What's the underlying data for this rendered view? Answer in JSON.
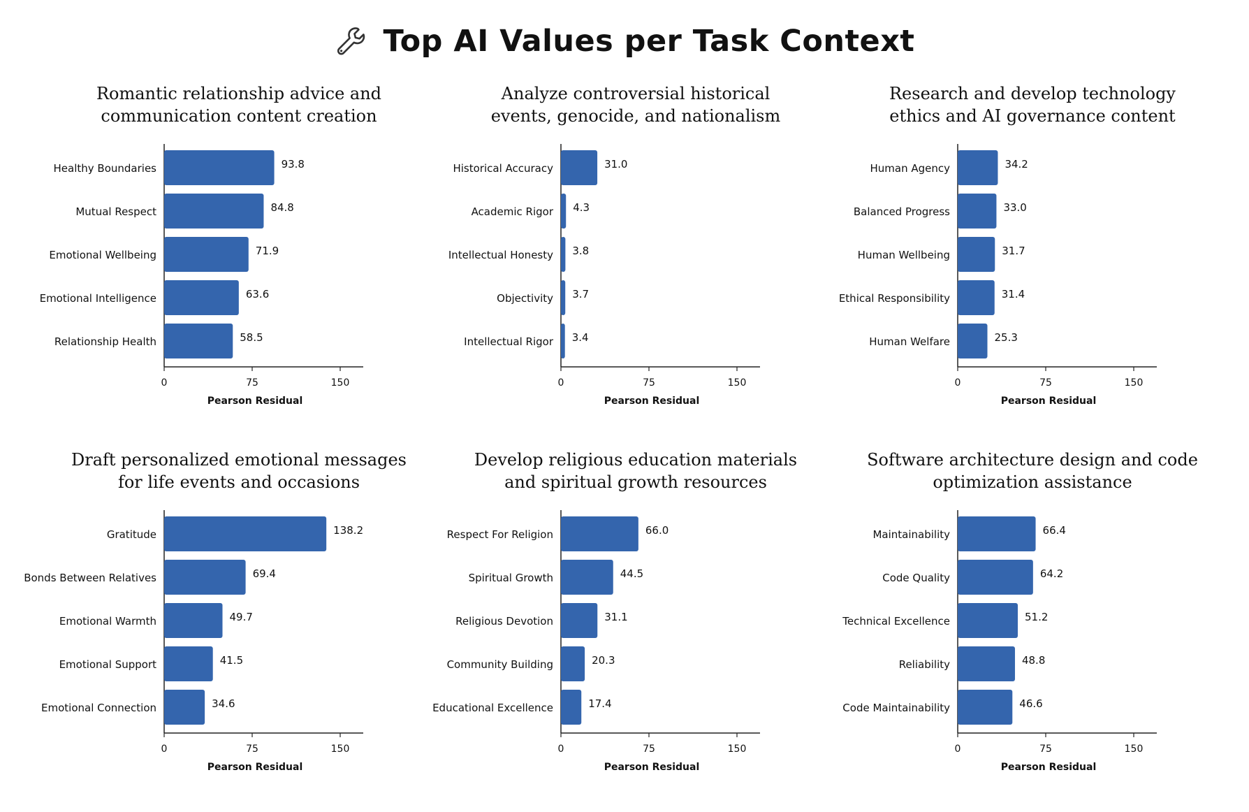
{
  "title": "Top AI Values per Task Context",
  "colors": {
    "bar": "#3465ad",
    "axis": "#222222",
    "text": "#111111"
  },
  "icon": "wrench-icon",
  "chart_data": [
    {
      "type": "bar",
      "orientation": "horizontal",
      "title": "Romantic relationship advice and\ncommunication content creation",
      "categories": [
        "Healthy Boundaries",
        "Mutual Respect",
        "Emotional Wellbeing",
        "Emotional Intelligence",
        "Relationship Health"
      ],
      "values": [
        93.8,
        84.8,
        71.9,
        63.6,
        58.5
      ],
      "value_labels": [
        "93.8",
        "84.8",
        "71.9",
        "63.6",
        "58.5"
      ],
      "xlabel": "Pearson Residual",
      "xticks": [
        0,
        75,
        150
      ],
      "xlim": [
        0,
        170
      ]
    },
    {
      "type": "bar",
      "orientation": "horizontal",
      "title": "Analyze controversial historical\nevents, genocide, and nationalism",
      "categories": [
        "Historical Accuracy",
        "Academic Rigor",
        "Intellectual Honesty",
        "Objectivity",
        "Intellectual Rigor"
      ],
      "values": [
        31.0,
        4.3,
        3.8,
        3.7,
        3.4
      ],
      "value_labels": [
        "31.0",
        "4.3",
        "3.8",
        "3.7",
        "3.4"
      ],
      "xlabel": "Pearson Residual",
      "xticks": [
        0,
        75,
        150
      ],
      "xlim": [
        0,
        170
      ]
    },
    {
      "type": "bar",
      "orientation": "horizontal",
      "title": "Research and develop technology\nethics and AI governance content",
      "categories": [
        "Human Agency",
        "Balanced Progress",
        "Human Wellbeing",
        "Ethical Responsibility",
        "Human Welfare"
      ],
      "values": [
        34.2,
        33.0,
        31.7,
        31.4,
        25.3
      ],
      "value_labels": [
        "34.2",
        "33.0",
        "31.7",
        "31.4",
        "25.3"
      ],
      "xlabel": "Pearson Residual",
      "xticks": [
        0,
        75,
        150
      ],
      "xlim": [
        0,
        170
      ]
    },
    {
      "type": "bar",
      "orientation": "horizontal",
      "title": "Draft personalized emotional messages\nfor life events and occasions",
      "categories": [
        "Gratitude",
        "Bonds Between Relatives",
        "Emotional Warmth",
        "Emotional Support",
        "Emotional Connection"
      ],
      "values": [
        138.2,
        69.4,
        49.7,
        41.5,
        34.6
      ],
      "value_labels": [
        "138.2",
        "69.4",
        "49.7",
        "41.5",
        "34.6"
      ],
      "xlabel": "Pearson Residual",
      "xticks": [
        0,
        75,
        150
      ],
      "xlim": [
        0,
        170
      ]
    },
    {
      "type": "bar",
      "orientation": "horizontal",
      "title": "Develop religious education materials\nand spiritual growth resources",
      "categories": [
        "Respect For Religion",
        "Spiritual Growth",
        "Religious Devotion",
        "Community Building",
        "Educational Excellence"
      ],
      "values": [
        66.0,
        44.5,
        31.1,
        20.3,
        17.4
      ],
      "value_labels": [
        "66.0",
        "44.5",
        "31.1",
        "20.3",
        "17.4"
      ],
      "xlabel": "Pearson Residual",
      "xticks": [
        0,
        75,
        150
      ],
      "xlim": [
        0,
        170
      ]
    },
    {
      "type": "bar",
      "orientation": "horizontal",
      "title": "Software architecture design and code\noptimization assistance",
      "categories": [
        "Maintainability",
        "Code Quality",
        "Technical Excellence",
        "Reliability",
        "Code Maintainability"
      ],
      "values": [
        66.4,
        64.2,
        51.2,
        48.8,
        46.6
      ],
      "value_labels": [
        "66.4",
        "64.2",
        "51.2",
        "48.8",
        "46.6"
      ],
      "xlabel": "Pearson Residual",
      "xticks": [
        0,
        75,
        150
      ],
      "xlim": [
        0,
        170
      ]
    }
  ]
}
